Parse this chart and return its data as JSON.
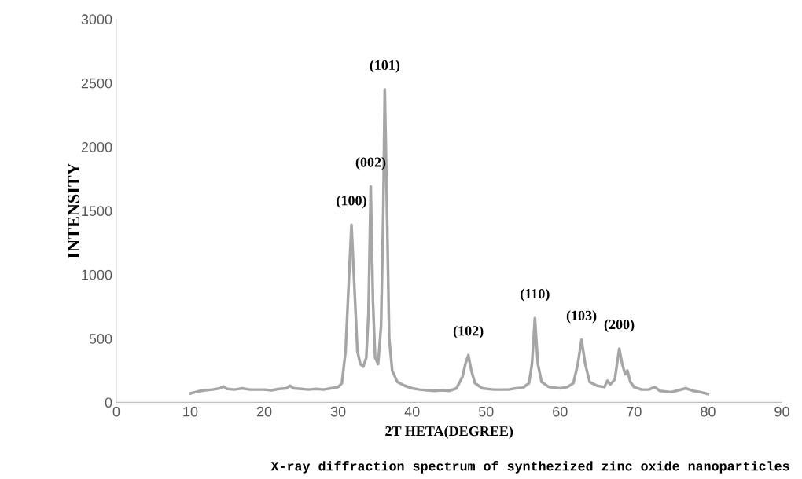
{
  "chart_data": {
    "type": "line",
    "xlabel": "2T HETA(DEGREE)",
    "ylabel": "INTENSITY",
    "x": [
      10,
      11,
      12,
      13,
      14,
      14.5,
      15,
      16,
      17,
      18,
      19,
      20,
      21,
      22,
      23,
      23.5,
      24,
      25,
      26,
      27,
      28,
      29,
      30,
      30.5,
      31,
      31.4,
      31.8,
      32.2,
      32.6,
      33.0,
      33.4,
      33.8,
      34.1,
      34.4,
      34.7,
      35.0,
      35.4,
      35.8,
      36.1,
      36.3,
      36.6,
      36.9,
      37.3,
      38,
      39,
      40,
      41,
      42,
      43,
      44,
      45,
      46,
      46.8,
      47.2,
      47.6,
      48.0,
      48.5,
      49.5,
      51,
      52,
      53,
      54,
      55,
      55.8,
      56.2,
      56.6,
      57.0,
      57.5,
      58.5,
      60,
      61,
      61.8,
      62.4,
      62.9,
      63.4,
      64,
      65,
      66,
      66.4,
      66.8,
      67.4,
      67.7,
      68.0,
      68.4,
      68.8,
      69.1,
      69.5,
      70,
      71,
      72,
      72.8,
      73.5,
      75,
      76,
      77,
      77.5,
      78,
      79,
      80
    ],
    "series": [
      {
        "color": "#a6a6a6",
        "values": [
          70,
          85,
          95,
          100,
          110,
          125,
          105,
          100,
          110,
          100,
          100,
          100,
          95,
          105,
          110,
          130,
          110,
          105,
          100,
          105,
          100,
          110,
          120,
          150,
          400,
          900,
          1390,
          900,
          400,
          300,
          280,
          350,
          700,
          1690,
          800,
          350,
          300,
          600,
          1500,
          2450,
          1500,
          500,
          250,
          160,
          130,
          110,
          100,
          95,
          90,
          95,
          90,
          110,
          200,
          300,
          370,
          250,
          150,
          110,
          100,
          100,
          100,
          110,
          115,
          150,
          300,
          660,
          300,
          160,
          120,
          110,
          120,
          150,
          300,
          490,
          300,
          160,
          130,
          120,
          170,
          140,
          180,
          300,
          420,
          300,
          220,
          250,
          160,
          120,
          100,
          100,
          120,
          90,
          80,
          95,
          110,
          100,
          90,
          80,
          65
        ]
      }
    ],
    "xlim": [
      0,
      90
    ],
    "xticks": [
      0,
      10,
      20,
      30,
      40,
      50,
      60,
      70,
      80,
      90
    ],
    "ylim": [
      0,
      3000
    ],
    "yticks": [
      0,
      500,
      1000,
      1500,
      2000,
      2500,
      3000
    ],
    "grid": false,
    "marker": "none",
    "line_style": "solid",
    "annotations": [
      {
        "text": "(100)",
        "x": 31.8,
        "y": 1390
      },
      {
        "text": "(002)",
        "x": 34.4,
        "y": 1690
      },
      {
        "text": "(101)",
        "x": 36.3,
        "y": 2450
      },
      {
        "text": "(102)",
        "x": 47.6,
        "y": 370
      },
      {
        "text": "(110)",
        "x": 56.6,
        "y": 660
      },
      {
        "text": "(103)",
        "x": 62.9,
        "y": 490
      },
      {
        "text": "(200)",
        "x": 68.0,
        "y": 420
      },
      "X-ray diffraction spectrum of synthezized zinc oxide nanoparticles"
    ]
  }
}
